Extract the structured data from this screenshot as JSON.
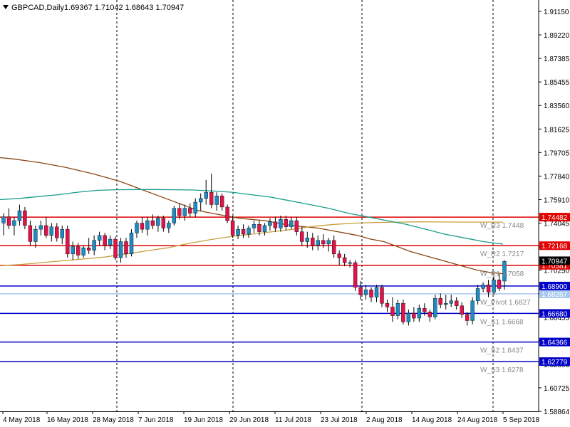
{
  "header": {
    "symbol": "GBPCAD,Daily",
    "ohlc": "1.69367 1.71042 1.68643 1.70947"
  },
  "colors": {
    "bull": "#1e8bc3",
    "bear": "#e0134a",
    "ma_short": "#8b4513",
    "ma_mid": "#c8a03c",
    "ma_long": "#1a9c8c",
    "resistance": "#e00000",
    "support": "#0000c8",
    "pivot": "#a8c8f0",
    "current": "#000000"
  },
  "chart_data": {
    "type": "candlestick",
    "title": "GBPCAD,Daily",
    "ylim": [
      1.58864,
      1.922
    ],
    "y_ticks": [
      "1.91150",
      "1.89220",
      "1.87385",
      "1.85455",
      "1.83560",
      "1.81625",
      "1.79705",
      "1.77840",
      "1.75910",
      "1.74045",
      "1.72115",
      "1.70250",
      "1.68320",
      "1.66455",
      "1.64525",
      "1.62595",
      "1.60725",
      "1.58864"
    ],
    "x_labels": [
      "4 May 2018",
      "16 May 2018",
      "28 May 2018",
      "7 Jun 2018",
      "19 Jun 2018",
      "29 Jun 2018",
      "11 Jul 2018",
      "23 Jul 2018",
      "2 Aug 2018",
      "14 Aug 2018",
      "24 Aug 2018",
      "5 Sep 2018"
    ],
    "levels": [
      {
        "name": "W_R3",
        "value": 1.74482,
        "label": "W_R3 1.7448",
        "tag": "1.74482",
        "kind": "resistance"
      },
      {
        "name": "W_R2",
        "value": 1.72168,
        "label": "W_R2 1.7217",
        "tag": "1.72168",
        "kind": "resistance"
      },
      {
        "name": "W_R1",
        "value": 1.70581,
        "label": "W_R1 1.7058",
        "tag": "1.70581",
        "kind": "resistance"
      },
      {
        "name": "W_Pivot",
        "value": 1.68267,
        "label": "W_Pivot 1.6827",
        "tag": "1.68267",
        "kind": "pivot"
      },
      {
        "name": "W_S1",
        "value": 1.6668,
        "label": "W_S1 1.6668",
        "tag": "1.66680",
        "kind": "support"
      },
      {
        "name": "W_S2",
        "value": 1.64366,
        "label": "W_S2 1.6437",
        "tag": "1.64366",
        "kind": "support"
      },
      {
        "name": "W_S3",
        "value": 1.62779,
        "label": "W_S3 1.6278",
        "tag": "1.62779",
        "kind": "support"
      },
      {
        "name": "horizontal-line",
        "value": 1.689,
        "label": "",
        "tag": "1.68900",
        "kind": "support"
      }
    ],
    "current_price": 1.70947,
    "candles": [
      [
        1.74,
        1.748,
        1.73,
        1.745
      ],
      [
        1.745,
        1.752,
        1.735,
        1.738
      ],
      [
        1.738,
        1.745,
        1.73,
        1.742
      ],
      [
        1.742,
        1.755,
        1.738,
        1.75
      ],
      [
        1.75,
        1.753,
        1.735,
        1.738
      ],
      [
        1.738,
        1.742,
        1.722,
        1.725
      ],
      [
        1.725,
        1.738,
        1.72,
        1.735
      ],
      [
        1.735,
        1.742,
        1.73,
        1.738
      ],
      [
        1.738,
        1.745,
        1.728,
        1.73
      ],
      [
        1.73,
        1.74,
        1.725,
        1.737
      ],
      [
        1.737,
        1.74,
        1.725,
        1.728
      ],
      [
        1.728,
        1.738,
        1.723,
        1.735
      ],
      [
        1.735,
        1.738,
        1.712,
        1.715
      ],
      [
        1.715,
        1.725,
        1.71,
        1.721
      ],
      [
        1.721,
        1.724,
        1.711,
        1.714
      ],
      [
        1.714,
        1.722,
        1.712,
        1.72
      ],
      [
        1.72,
        1.728,
        1.715,
        1.718
      ],
      [
        1.718,
        1.73,
        1.714,
        1.726
      ],
      [
        1.726,
        1.733,
        1.722,
        1.73
      ],
      [
        1.73,
        1.732,
        1.718,
        1.722
      ],
      [
        1.722,
        1.73,
        1.719,
        1.727
      ],
      [
        1.727,
        1.729,
        1.71,
        1.712
      ],
      [
        1.712,
        1.728,
        1.708,
        1.725
      ],
      [
        1.725,
        1.728,
        1.712,
        1.715
      ],
      [
        1.715,
        1.735,
        1.713,
        1.732
      ],
      [
        1.732,
        1.742,
        1.728,
        1.74
      ],
      [
        1.74,
        1.745,
        1.732,
        1.735
      ],
      [
        1.735,
        1.745,
        1.73,
        1.742
      ],
      [
        1.742,
        1.747,
        1.735,
        1.738
      ],
      [
        1.738,
        1.746,
        1.733,
        1.744
      ],
      [
        1.744,
        1.746,
        1.733,
        1.736
      ],
      [
        1.736,
        1.742,
        1.732,
        1.74
      ],
      [
        1.74,
        1.754,
        1.738,
        1.752
      ],
      [
        1.752,
        1.756,
        1.743,
        1.746
      ],
      [
        1.746,
        1.755,
        1.742,
        1.752
      ],
      [
        1.752,
        1.756,
        1.745,
        1.748
      ],
      [
        1.748,
        1.76,
        1.745,
        1.757
      ],
      [
        1.757,
        1.764,
        1.75,
        1.76
      ],
      [
        1.76,
        1.775,
        1.755,
        1.765
      ],
      [
        1.765,
        1.78,
        1.752,
        1.755
      ],
      [
        1.755,
        1.765,
        1.75,
        1.762
      ],
      [
        1.762,
        1.764,
        1.75,
        1.753
      ],
      [
        1.753,
        1.755,
        1.74,
        1.742
      ],
      [
        1.742,
        1.746,
        1.728,
        1.73
      ],
      [
        1.73,
        1.738,
        1.727,
        1.735
      ],
      [
        1.735,
        1.739,
        1.728,
        1.731
      ],
      [
        1.731,
        1.738,
        1.728,
        1.736
      ],
      [
        1.736,
        1.742,
        1.732,
        1.739
      ],
      [
        1.739,
        1.742,
        1.73,
        1.733
      ],
      [
        1.733,
        1.74,
        1.73,
        1.738
      ],
      [
        1.738,
        1.744,
        1.734,
        1.741
      ],
      [
        1.741,
        1.745,
        1.733,
        1.736
      ],
      [
        1.736,
        1.746,
        1.733,
        1.743
      ],
      [
        1.743,
        1.746,
        1.734,
        1.737
      ],
      [
        1.737,
        1.745,
        1.735,
        1.742
      ],
      [
        1.742,
        1.745,
        1.73,
        1.733
      ],
      [
        1.733,
        1.737,
        1.722,
        1.725
      ],
      [
        1.725,
        1.733,
        1.72,
        1.728
      ],
      [
        1.728,
        1.732,
        1.718,
        1.722
      ],
      [
        1.722,
        1.73,
        1.718,
        1.726
      ],
      [
        1.726,
        1.731,
        1.72,
        1.723
      ],
      [
        1.723,
        1.728,
        1.717,
        1.726
      ],
      [
        1.726,
        1.73,
        1.712,
        1.715
      ],
      [
        1.715,
        1.718,
        1.706,
        1.712
      ],
      [
        1.712,
        1.715,
        1.705,
        1.708
      ],
      [
        1.708,
        1.71,
        1.704,
        1.708
      ],
      [
        1.708,
        1.71,
        1.685,
        1.688
      ],
      [
        1.688,
        1.693,
        1.678,
        1.682
      ],
      [
        1.682,
        1.69,
        1.678,
        1.686
      ],
      [
        1.686,
        1.688,
        1.676,
        1.68
      ],
      [
        1.68,
        1.69,
        1.676,
        1.688
      ],
      [
        1.688,
        1.69,
        1.672,
        1.675
      ],
      [
        1.675,
        1.678,
        1.668,
        1.672
      ],
      [
        1.672,
        1.68,
        1.66,
        1.665
      ],
      [
        1.665,
        1.678,
        1.662,
        1.675
      ],
      [
        1.675,
        1.678,
        1.658,
        1.66
      ],
      [
        1.66,
        1.67,
        1.657,
        1.667
      ],
      [
        1.667,
        1.672,
        1.66,
        1.663
      ],
      [
        1.663,
        1.674,
        1.66,
        1.671
      ],
      [
        1.671,
        1.675,
        1.665,
        1.668
      ],
      [
        1.668,
        1.67,
        1.66,
        1.664
      ],
      [
        1.664,
        1.682,
        1.662,
        1.679
      ],
      [
        1.679,
        1.683,
        1.671,
        1.674
      ],
      [
        1.674,
        1.682,
        1.67,
        1.675
      ],
      [
        1.675,
        1.682,
        1.672,
        1.677
      ],
      [
        1.677,
        1.68,
        1.67,
        1.673
      ],
      [
        1.673,
        1.676,
        1.663,
        1.666
      ],
      [
        1.666,
        1.668,
        1.657,
        1.661
      ],
      [
        1.661,
        1.68,
        1.658,
        1.677
      ],
      [
        1.677,
        1.69,
        1.674,
        1.687
      ],
      [
        1.687,
        1.692,
        1.684,
        1.69
      ],
      [
        1.69,
        1.694,
        1.68,
        1.684
      ],
      [
        1.684,
        1.697,
        1.682,
        1.694
      ],
      [
        1.694,
        1.699,
        1.685,
        1.687
      ],
      [
        1.693,
        1.71,
        1.686,
        1.709
      ]
    ],
    "ma_short": [
      1.793,
      1.792,
      1.7905,
      1.789,
      1.787,
      1.785,
      1.7825,
      1.78,
      1.777,
      1.774,
      1.77,
      1.766,
      1.762,
      1.758,
      1.754,
      1.75,
      1.748,
      1.746,
      1.744,
      1.743,
      1.742,
      1.74,
      1.738,
      1.737,
      1.736,
      1.734,
      1.732,
      1.73,
      1.727,
      1.725,
      1.721,
      1.717,
      1.714,
      1.711,
      1.708,
      1.705,
      1.702,
      1.7,
      1.699
    ],
    "ma_mid": [
      1.7055,
      1.7065,
      1.708,
      1.7095,
      1.711,
      1.7125,
      1.715,
      1.7175,
      1.72,
      1.7235,
      1.7265,
      1.729,
      1.731,
      1.733,
      1.735,
      1.7375,
      1.739,
      1.74,
      1.7405,
      1.7408,
      1.741,
      1.7409,
      1.7408,
      1.7408,
      1.7408
    ],
    "ma_long": [
      1.759,
      1.76,
      1.7615,
      1.763,
      1.765,
      1.7665,
      1.767,
      1.7672,
      1.7672,
      1.767,
      1.7668,
      1.766,
      1.765,
      1.763,
      1.761,
      1.758,
      1.755,
      1.752,
      1.748,
      1.745,
      1.742,
      1.739,
      1.735,
      1.731,
      1.728,
      1.725,
      1.723
    ]
  }
}
